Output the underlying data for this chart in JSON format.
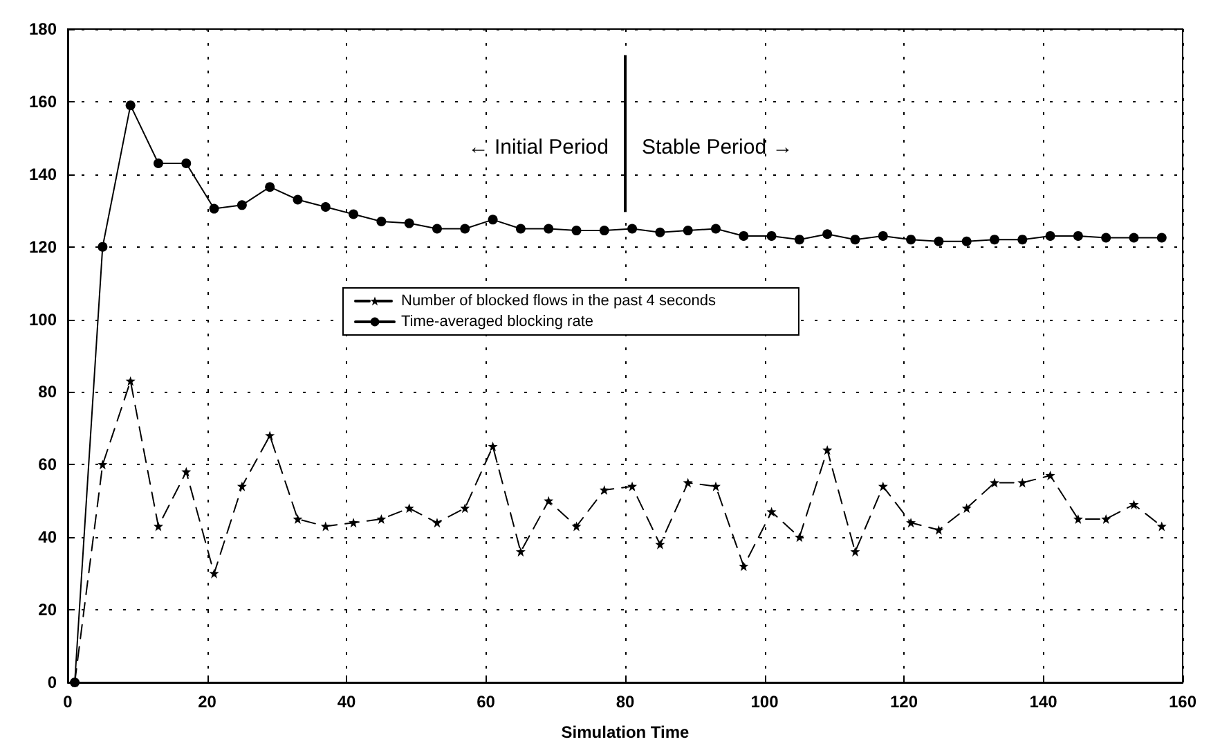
{
  "chart_data": {
    "type": "line",
    "xlabel": "Simulation Time",
    "x": [
      1,
      5,
      9,
      13,
      17,
      21,
      25,
      29,
      33,
      37,
      41,
      45,
      49,
      53,
      57,
      61,
      65,
      69,
      73,
      77,
      81,
      85,
      89,
      93,
      97,
      101,
      105,
      109,
      113,
      117,
      121,
      125,
      129,
      133,
      137,
      141,
      145,
      149,
      153,
      157
    ],
    "series": [
      {
        "name": "Number of blocked flows in the past 4 seconds",
        "color": "#000000",
        "marker": "star",
        "line_style": "dashed",
        "values": [
          0,
          60,
          83,
          43,
          58,
          30,
          54,
          68,
          45,
          43,
          44,
          45,
          48,
          44,
          48,
          65,
          36,
          50,
          43,
          53,
          54,
          38,
          55,
          54,
          32,
          47,
          40,
          64,
          36,
          54,
          44,
          42,
          48,
          55,
          55,
          57,
          45,
          45,
          49,
          43
        ]
      },
      {
        "name": "Time-averaged blocking rate",
        "color": "#000000",
        "marker": "circle",
        "line_style": "solid",
        "values": [
          0,
          120,
          159,
          143,
          143,
          130.5,
          131.5,
          136.5,
          133,
          131,
          129,
          127,
          126.5,
          125,
          125,
          127.5,
          125,
          125,
          124.5,
          124.5,
          125,
          124,
          124.5,
          125,
          123,
          123,
          122,
          123.5,
          122,
          123,
          122,
          121.5,
          121.5,
          122,
          122,
          123,
          123,
          122.5,
          122.5,
          122.5
        ]
      }
    ],
    "annotations": [
      "← Initial Period",
      "Stable Period →"
    ],
    "ref_lines": [
      {
        "axis": "x",
        "value": 80,
        "label": null,
        "color": "#000000"
      }
    ],
    "xlim": [
      0,
      160
    ],
    "xticks": [
      0,
      20,
      40,
      60,
      80,
      100,
      120,
      140,
      160
    ],
    "ylim": [
      0,
      180
    ],
    "yticks": [
      0,
      20,
      40,
      60,
      80,
      100,
      120,
      140,
      160,
      180
    ],
    "grid": true,
    "legend": "center"
  }
}
